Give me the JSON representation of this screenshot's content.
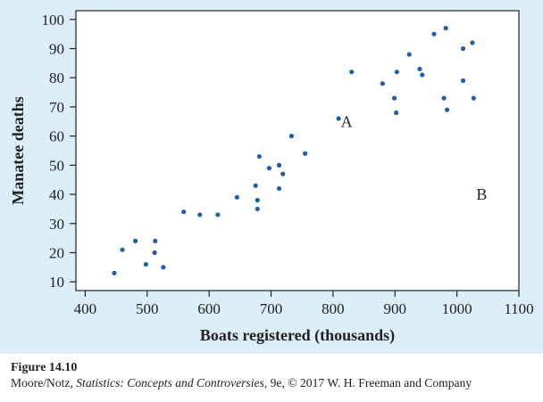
{
  "chart_data": {
    "type": "scatter",
    "title": "",
    "xlabel": "Boats registered (thousands)",
    "ylabel": "Manatee deaths",
    "xlim": [
      385,
      1100
    ],
    "ylim": [
      7,
      103
    ],
    "xticks": [
      400,
      500,
      600,
      700,
      800,
      900,
      1000,
      1100
    ],
    "yticks": [
      10,
      20,
      30,
      40,
      50,
      60,
      70,
      80,
      90,
      100
    ],
    "grid": false,
    "marker_color": "#1f5fa8",
    "points": [
      {
        "x": 447,
        "y": 13
      },
      {
        "x": 460,
        "y": 21
      },
      {
        "x": 481,
        "y": 24
      },
      {
        "x": 498,
        "y": 16
      },
      {
        "x": 513,
        "y": 24
      },
      {
        "x": 512,
        "y": 20
      },
      {
        "x": 526,
        "y": 15
      },
      {
        "x": 559,
        "y": 34
      },
      {
        "x": 585,
        "y": 33
      },
      {
        "x": 614,
        "y": 33
      },
      {
        "x": 645,
        "y": 39
      },
      {
        "x": 675,
        "y": 43
      },
      {
        "x": 678,
        "y": 38
      },
      {
        "x": 678,
        "y": 35
      },
      {
        "x": 681,
        "y": 53
      },
      {
        "x": 697,
        "y": 49
      },
      {
        "x": 713,
        "y": 50
      },
      {
        "x": 713,
        "y": 42
      },
      {
        "x": 719,
        "y": 47
      },
      {
        "x": 733,
        "y": 60
      },
      {
        "x": 755,
        "y": 54
      },
      {
        "x": 809,
        "y": 66
      },
      {
        "x": 830,
        "y": 82
      },
      {
        "x": 880,
        "y": 78
      },
      {
        "x": 899,
        "y": 73
      },
      {
        "x": 902,
        "y": 68
      },
      {
        "x": 903,
        "y": 82
      },
      {
        "x": 923,
        "y": 88
      },
      {
        "x": 940,
        "y": 83
      },
      {
        "x": 944,
        "y": 81
      },
      {
        "x": 963,
        "y": 95
      },
      {
        "x": 982,
        "y": 97
      },
      {
        "x": 979,
        "y": 73
      },
      {
        "x": 984,
        "y": 69
      },
      {
        "x": 1010,
        "y": 90
      },
      {
        "x": 1010,
        "y": 79
      },
      {
        "x": 1025,
        "y": 92
      },
      {
        "x": 1027,
        "y": 73
      }
    ],
    "annotations": [
      {
        "text": "A",
        "x": 822,
        "y": 65
      },
      {
        "text": "B",
        "x": 1040,
        "y": 40
      }
    ]
  },
  "caption": {
    "figure_label": "Figure 14.10",
    "credit_authors": "Moore/Notz, ",
    "credit_book": "Statistics: Concepts and Controversies",
    "credit_rest": ", 9e, © 2017 W. H. Freeman and Company"
  }
}
